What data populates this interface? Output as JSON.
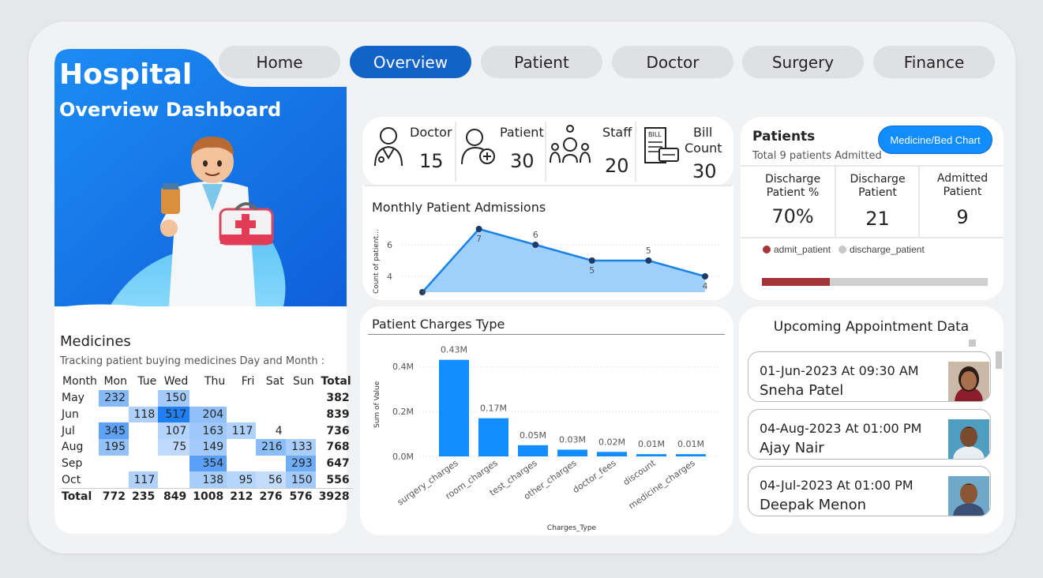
{
  "nav": [
    "Home",
    "Overview",
    "Patient",
    "Doctor",
    "Surgery",
    "Finance"
  ],
  "hero": {
    "title": "Hospital",
    "subtitle": "Overview Dashboard"
  },
  "kpis": [
    {
      "label": "Doctor",
      "value": "15",
      "icon": "doctor-icon"
    },
    {
      "label": "Patient",
      "value": "30",
      "icon": "patient-add-icon"
    },
    {
      "label": "Staff",
      "value": "20",
      "icon": "staff-network-icon"
    },
    {
      "label_line1": "Bill",
      "label_line2": "Count",
      "value": "30",
      "icon": "bill-icon"
    }
  ],
  "patients_panel": {
    "title": "Patients",
    "subtitle": "Total 9 patients Admitted",
    "button": "Medicine/Bed Chart",
    "stats": [
      {
        "label_line1": "Discharge",
        "label_line2": "Patient %",
        "value": "70%"
      },
      {
        "label_line1": "Discharge",
        "label_line2": "Patient",
        "value": "21"
      },
      {
        "label_line1": "Admitted",
        "label_line2": "Patient",
        "value": "9"
      }
    ],
    "legend": [
      {
        "name": "admit_patient",
        "color": "#a4343a"
      },
      {
        "name": "discharge_patient",
        "color": "#c8c8c8"
      }
    ],
    "admit_fraction": 0.3
  },
  "admissions_chart": {
    "title": "Monthly Patient Admissions",
    "ylabel": "Count of patient...",
    "yticks": [
      "4",
      "6"
    ],
    "values": [
      3,
      7,
      6,
      5,
      5,
      4
    ],
    "color": "#1a82e6"
  },
  "charges_chart": {
    "title": "Patient Charges Type",
    "ylabel": "Sum of Value",
    "xlabel": "Charges_Type",
    "yticks": [
      "0.0M",
      "0.2M",
      "0.4M"
    ],
    "color": "#118dff"
  },
  "chart_data": [
    {
      "type": "area",
      "title": "Monthly Patient Admissions",
      "ylabel": "Count of patient...",
      "x": [
        1,
        2,
        3,
        4,
        5,
        6
      ],
      "values": [
        3,
        7,
        6,
        5,
        5,
        4
      ],
      "ylim": [
        3,
        7
      ],
      "grid": true
    },
    {
      "type": "bar",
      "title": "Patient Charges Type",
      "xlabel": "Charges_Type",
      "ylabel": "Sum of Value",
      "categories": [
        "surgery_charges",
        "room_charges",
        "test_charges",
        "other_charges",
        "doctor_fees",
        "discount",
        "medicine_charges"
      ],
      "values": [
        0.43,
        0.17,
        0.05,
        0.03,
        0.02,
        0.01,
        0.01
      ],
      "labels": [
        "0.43M",
        "0.17M",
        "0.05M",
        "0.03M",
        "0.02M",
        "0.01M",
        "0.01M"
      ],
      "ylim": [
        0,
        0.45
      ],
      "grid": true
    }
  ],
  "medicines": {
    "title": "Medicines",
    "subtitle": "Tracking patient buying medicines Day and Month :",
    "columns": [
      "Month",
      "Mon",
      "Tue",
      "Wed",
      "Thu",
      "Fri",
      "Sat",
      "Sun",
      "Total"
    ],
    "rows": [
      [
        "May",
        "232",
        "",
        "150",
        "",
        "",
        "",
        "",
        "382"
      ],
      [
        "Jun",
        "",
        "118",
        "517",
        "204",
        "",
        "",
        "",
        "839"
      ],
      [
        "Jul",
        "345",
        "",
        "107",
        "163",
        "117",
        "4",
        "",
        "736"
      ],
      [
        "Aug",
        "195",
        "",
        "75",
        "149",
        "",
        "216",
        "133",
        "768"
      ],
      [
        "Sep",
        "",
        "",
        "",
        "354",
        "",
        "",
        "293",
        "647"
      ],
      [
        "Oct",
        "",
        "117",
        "",
        "138",
        "95",
        "56",
        "150",
        "556"
      ]
    ],
    "total_row": [
      "Total",
      "772",
      "235",
      "849",
      "1008",
      "212",
      "276",
      "576",
      "3928"
    ]
  },
  "appointments": {
    "title": "Upcoming Appointment Data",
    "items": [
      {
        "when": "01-Jun-2023 At 09:30 AM",
        "who": "Sneha Patel",
        "photo": "female-avatar"
      },
      {
        "when": "04-Aug-2023 At 01:00 PM",
        "who": "Ajay Nair",
        "photo": "male-avatar"
      },
      {
        "when": "04-Jul-2023 At 01:00 PM",
        "who": "Deepak Menon",
        "photo": "male-avatar"
      }
    ]
  }
}
